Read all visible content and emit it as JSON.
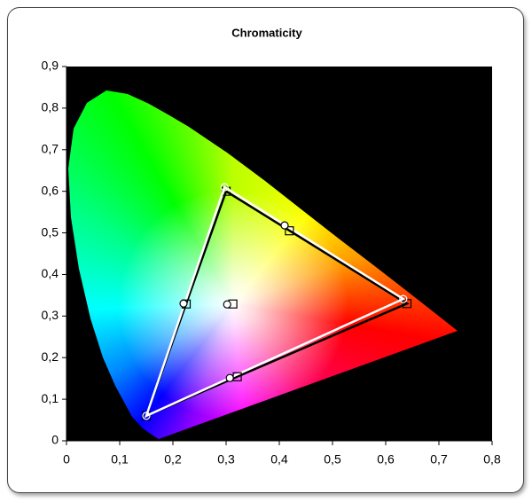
{
  "chart_data": {
    "type": "line",
    "title": "Chromaticity",
    "xlim": [
      0,
      0.8
    ],
    "ylim": [
      0,
      0.9
    ],
    "xticks": [
      0,
      {
        "value": 0.1,
        "label": "0,1"
      },
      {
        "value": 0.2,
        "label": "0,2"
      },
      {
        "value": 0.3,
        "label": "0,3"
      },
      {
        "value": 0.4,
        "label": "0,4"
      },
      {
        "value": 0.5,
        "label": "0,5"
      },
      {
        "value": 0.6,
        "label": "0,6"
      },
      {
        "value": 0.7,
        "label": "0,7"
      },
      {
        "value": 0.8,
        "label": "0,8"
      }
    ],
    "yticks": [
      0,
      {
        "value": 0.1,
        "label": "0,1"
      },
      {
        "value": 0.2,
        "label": "0,2"
      },
      {
        "value": 0.3,
        "label": "0,3"
      },
      {
        "value": 0.4,
        "label": "0,4"
      },
      {
        "value": 0.5,
        "label": "0,5"
      },
      {
        "value": 0.6,
        "label": "0,6"
      },
      {
        "value": 0.7,
        "label": "0,7"
      },
      {
        "value": 0.8,
        "label": "0,8"
      },
      {
        "value": 0.9,
        "label": "0,9"
      }
    ],
    "series": [
      {
        "color": "#000000",
        "marker": "square",
        "line": true,
        "closed": true,
        "x": [
          0.64,
          0.3,
          0.15
        ],
        "y": [
          0.33,
          0.6,
          0.06
        ]
      },
      {
        "color": "#ffffff",
        "marker": "circle",
        "line": true,
        "closed": true,
        "x": [
          0.633,
          0.297,
          0.15
        ],
        "y": [
          0.341,
          0.61,
          0.06
        ]
      },
      {
        "color": "#000000",
        "marker": "square",
        "line": false,
        "x": [
          0.225,
          0.419,
          0.321,
          0.3127
        ],
        "y": [
          0.329,
          0.505,
          0.154,
          0.329
        ]
      },
      {
        "color": "#000000",
        "marker": "circle",
        "line": false,
        "x": [
          0.22,
          0.41,
          0.307,
          0.302
        ],
        "y": [
          0.33,
          0.518,
          0.151,
          0.328
        ]
      }
    ]
  }
}
